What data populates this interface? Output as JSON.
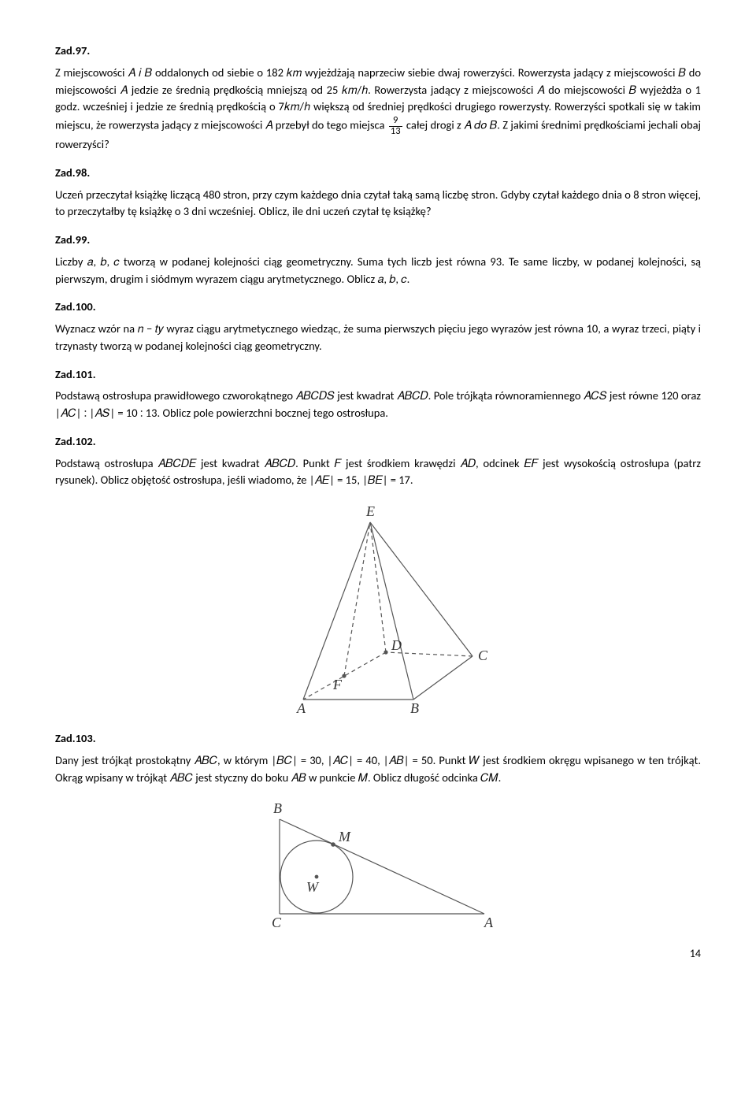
{
  "zad97": {
    "heading": "Zad.97.",
    "body": "Z miejscowości 𝐴 𝑖 𝐵 oddalonych od siebie o 182 𝑘𝑚 wyjeżdżają naprzeciw siebie dwaj rowerzyści. Rowerzysta jadący z miejscowości 𝐵 do miejscowości 𝐴 jedzie ze średnią prędkością mniejszą od 25 𝑘𝑚/ℎ. Rowerzysta jadący z miejscowości 𝐴 do miejscowości 𝐵 wyjeżdża o 1 godz. wcześniej i jedzie ze średnią prędkością o 7𝑘𝑚/ℎ większą od średniej prędkości drugiego rowerzysty. Rowerzyści spotkali się w takim miejscu, że rowerzysta jadący z miejscowości 𝐴 przebył do tego miejsca ",
    "frac_num": "9",
    "frac_den": "13",
    "body2": " całej drogi z 𝐴 𝑑𝑜 𝐵. Z jakimi średnimi prędkościami jechali obaj rowerzyści?"
  },
  "zad98": {
    "heading": "Zad.98.",
    "body": "Uczeń przeczytał książkę liczącą 480 stron, przy czym każdego dnia czytał taką samą liczbę stron. Gdyby czytał każdego dnia o 8 stron więcej, to przeczytałby tę książkę o 3 dni wcześniej. Oblicz, ile dni uczeń czytał tę książkę?"
  },
  "zad99": {
    "heading": "Zad.99.",
    "body": "Liczby 𝑎, 𝑏, 𝑐 tworzą w podanej kolejności ciąg geometryczny. Suma tych liczb jest równa 93. Te same liczby, w podanej kolejności, są pierwszym, drugim i siódmym wyrazem ciągu arytmetycznego. Oblicz 𝑎, 𝑏, 𝑐."
  },
  "zad100": {
    "heading": "Zad.100.",
    "body": "Wyznacz wzór na 𝑛 − 𝑡𝑦 wyraz ciągu arytmetycznego wiedząc, że suma pierwszych pięciu jego wyrazów jest równa 10, a wyraz trzeci, piąty i trzynasty tworzą w podanej kolejności ciąg geometryczny."
  },
  "zad101": {
    "heading": "Zad.101.",
    "body": "Podstawą ostrosłupa prawidłowego czworokątnego 𝐴𝐵𝐶𝐷𝑆 jest kwadrat 𝐴𝐵𝐶𝐷. Pole trójkąta równoramiennego 𝐴𝐶𝑆 jest równe 120 oraz |𝐴𝐶| ∶ |𝐴𝑆| = 10 ∶ 13. Oblicz pole powierzchni bocznej tego ostrosłupa."
  },
  "zad102": {
    "heading": "Zad.102.",
    "body": "Podstawą ostrosłupa 𝐴𝐵𝐶𝐷𝐸 jest kwadrat 𝐴𝐵𝐶𝐷. Punkt 𝐹 jest środkiem krawędzi 𝐴𝐷, odcinek 𝐸𝐹 jest wysokością ostrosłupa (patrz rysunek). Oblicz objętość ostrosłupa, jeśli wiadomo, że |𝐴𝐸| = 15, |𝐵𝐸| = 17."
  },
  "zad103": {
    "heading": "Zad.103.",
    "body": "Dany jest trójkąt prostokątny 𝐴𝐵𝐶, w którym |𝐵𝐶| = 30, |𝐴𝐶| = 40, |𝐴𝐵| = 50. Punkt 𝑊 jest środkiem okręgu wpisanego w ten trójkąt. Okrąg wpisany w trójkąt 𝐴𝐵𝐶 jest styczny do boku 𝐴𝐵 w punkcie 𝑀. Oblicz długość odcinka 𝐶𝑀."
  },
  "diagram1": {
    "labels": {
      "E": "E",
      "D": "D",
      "C": "C",
      "F": "F",
      "A": "A",
      "B": "B"
    },
    "stroke": "#555555",
    "fill": "#ffffff",
    "font": "italic 18px serif"
  },
  "diagram2": {
    "labels": {
      "B": "B",
      "M": "M",
      "W": "W",
      "C": "C",
      "A": "A"
    },
    "stroke": "#555555",
    "font": "italic 18px serif"
  },
  "page_number": "14"
}
